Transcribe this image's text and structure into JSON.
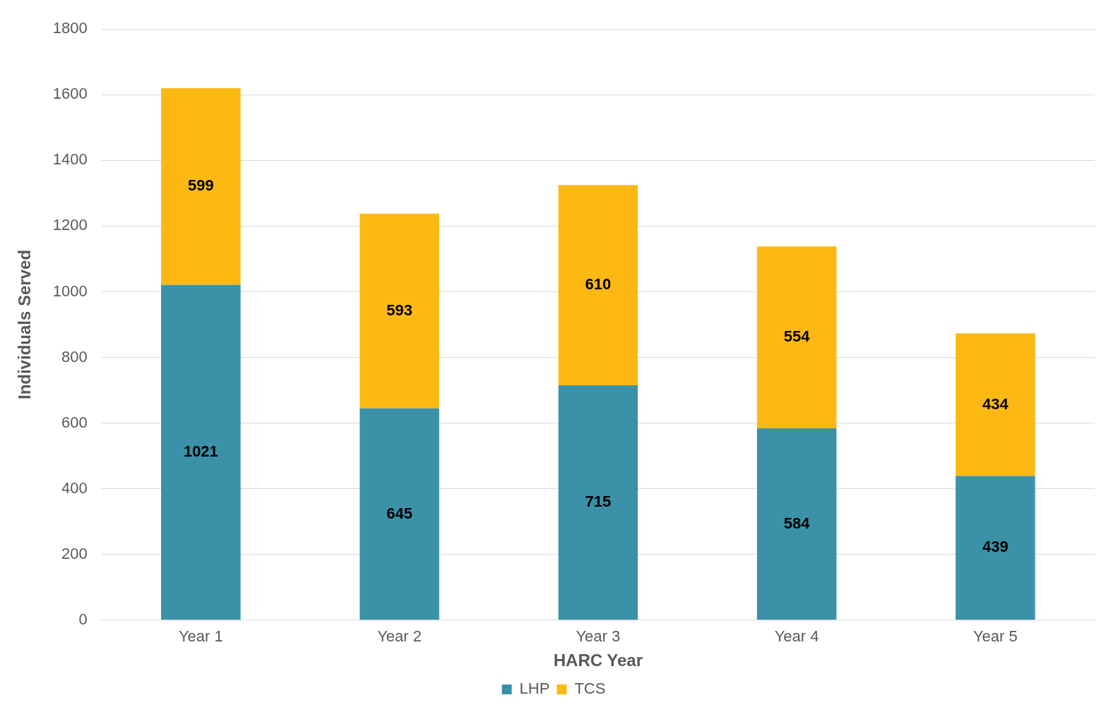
{
  "chart_data": {
    "type": "bar",
    "stacked": true,
    "xlabel": "HARC Year",
    "ylabel": "Individuals Served",
    "categories": [
      "Year 1",
      "Year 2",
      "Year 3",
      "Year 4",
      "Year 5"
    ],
    "series": [
      {
        "name": "LHP",
        "color": "#3a91a8",
        "values": [
          1021,
          645,
          715,
          584,
          439
        ]
      },
      {
        "name": "TCS",
        "color": "#fdb913",
        "values": [
          599,
          593,
          610,
          554,
          434
        ]
      }
    ],
    "ylim": [
      0,
      1800
    ],
    "yticks": [
      0,
      200,
      400,
      600,
      800,
      1000,
      1200,
      1400,
      1600,
      1800
    ],
    "grid": "y",
    "legend": "bottom",
    "data_labels": true
  }
}
